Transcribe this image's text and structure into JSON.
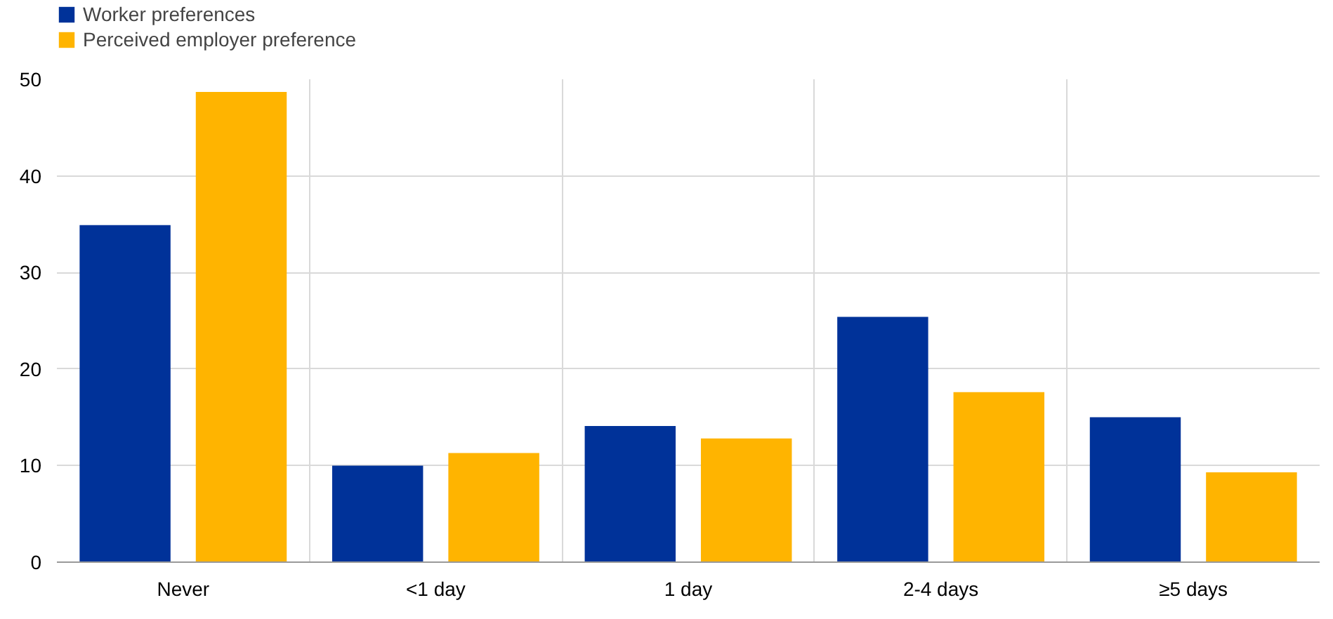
{
  "chart_data": {
    "type": "bar",
    "categories": [
      "Never",
      "<1 day",
      "1 day",
      "2-4 days",
      "≥5 days"
    ],
    "series": [
      {
        "name": "Worker preferences",
        "color": "#003299",
        "values": [
          34.9,
          10.0,
          14.1,
          25.4,
          15.0
        ]
      },
      {
        "name": "Perceived employer preference",
        "color": "#ffb400",
        "values": [
          48.7,
          11.3,
          12.8,
          17.6,
          9.3
        ]
      }
    ],
    "ylim": [
      0,
      50
    ],
    "yticks": [
      0,
      10,
      20,
      30,
      40,
      50
    ],
    "grid": true,
    "legend": "top left"
  }
}
